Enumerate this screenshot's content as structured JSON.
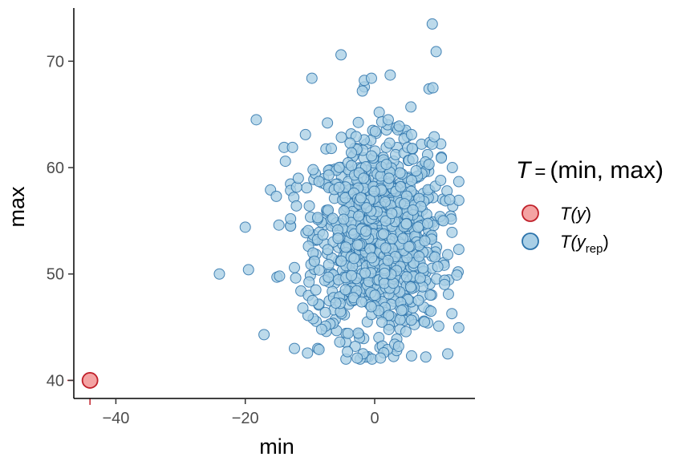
{
  "chart_data": {
    "type": "scatter",
    "title": "",
    "xlabel": "min",
    "ylabel": "max",
    "xlim": [
      -46.5,
      15.5
    ],
    "ylim": [
      38.3,
      75
    ],
    "x_ticks": [
      -40,
      -20,
      0
    ],
    "x_tick_labels": [
      "−40",
      "−20",
      "0"
    ],
    "y_ticks": [
      40,
      50,
      60,
      70
    ],
    "y_tick_labels": [
      "40",
      "50",
      "60",
      "70"
    ],
    "grid": false,
    "legend": {
      "placement": "right",
      "title_T": "T",
      "title_eq": "=",
      "title_rest": "(min, max)",
      "entries": [
        {
          "prefix": "T(",
          "main": "y",
          "sub": "",
          "suffix": ")",
          "fill": "#f4a3a3",
          "stroke": "#c0202a"
        },
        {
          "prefix": "T(",
          "main": "y",
          "sub": "rep",
          "suffix": ")",
          "fill": "#a9cfe6",
          "stroke": "#2a72aa"
        }
      ]
    },
    "series": [
      {
        "name": "T(y)",
        "fill": "#f4a3a3",
        "stroke": "#c0202a",
        "rug": true,
        "points": [
          [
            -44,
            40
          ]
        ]
      },
      {
        "name": "T(y_rep)",
        "fill": "#a9cfe6",
        "stroke": "#2a72aa",
        "opacity": 0.78,
        "generated": {
          "count": 1000,
          "x_center": 0.5,
          "x_sd": 4.8,
          "x_min": -13,
          "x_max": 13,
          "y_center": 53.5,
          "y_sd": 4.3,
          "y_min": 42,
          "y_max": 73
        },
        "points": [
          [
            -24,
            50
          ],
          [
            -19.5,
            50.4
          ],
          [
            -20,
            54.4
          ],
          [
            -18.3,
            64.5
          ],
          [
            -17.1,
            44.3
          ],
          [
            -16.1,
            57.9
          ],
          [
            -15.2,
            57.3
          ],
          [
            -15.1,
            49.7
          ],
          [
            -14.7,
            49.8
          ],
          [
            -14.8,
            54.6
          ],
          [
            -14,
            61.9
          ],
          [
            -13.8,
            60.6
          ],
          [
            -12.7,
            61.9
          ],
          [
            -12.4,
            43
          ],
          [
            -12.5,
            57.2
          ],
          [
            -12.1,
            56.4
          ],
          [
            -12.4,
            50.6
          ],
          [
            -11.8,
            59
          ],
          [
            -10.7,
            63.1
          ],
          [
            -10.1,
            56.4
          ],
          [
            -9.7,
            68.4
          ],
          [
            -8.8,
            43
          ],
          [
            -9.6,
            47.5
          ],
          [
            -8.6,
            42.9
          ],
          [
            -7.3,
            64.2
          ],
          [
            -6.7,
            61.8
          ],
          [
            -7.1,
            59.3
          ],
          [
            -5.2,
            70.6
          ],
          [
            -3.8,
            62.3
          ],
          [
            -3.6,
            61.4
          ],
          [
            -3.1,
            59.3
          ],
          [
            -2.4,
            59.5
          ],
          [
            -1.7,
            59
          ],
          [
            -1.6,
            68.2
          ],
          [
            -1.9,
            67.2
          ],
          [
            -0.3,
            63.5
          ],
          [
            0.1,
            63.4
          ],
          [
            -0.5,
            68.4
          ],
          [
            0.7,
            65.2
          ],
          [
            1.1,
            64.3
          ],
          [
            2.2,
            59
          ],
          [
            1.8,
            60.3
          ],
          [
            2.3,
            62.3
          ],
          [
            2.1,
            64.5
          ],
          [
            2.4,
            68.7
          ],
          [
            3.8,
            63.9
          ],
          [
            5.1,
            61.9
          ],
          [
            5.8,
            61.8
          ],
          [
            5.7,
            63.1
          ],
          [
            5.9,
            60.8
          ],
          [
            4,
            58.2
          ],
          [
            4.6,
            56.6
          ],
          [
            5.7,
            58.8
          ],
          [
            6.4,
            59.7
          ],
          [
            5.6,
            65.7
          ],
          [
            8.4,
            60.3
          ],
          [
            8.9,
            62.2
          ],
          [
            9.2,
            62.9
          ],
          [
            10.3,
            60.9
          ],
          [
            12,
            60
          ],
          [
            8.4,
            67.4
          ],
          [
            9,
            67.5
          ],
          [
            8.9,
            73.5
          ],
          [
            9.5,
            70.9
          ],
          [
            10.2,
            58.8
          ],
          [
            10.1,
            55.4
          ],
          [
            10.6,
            55
          ],
          [
            11.6,
            57
          ],
          [
            12.9,
            50.2
          ],
          [
            12.7,
            49.9
          ],
          [
            11.4,
            48.1
          ],
          [
            8.7,
            46.5
          ],
          [
            9.9,
            45.1
          ],
          [
            8.2,
            45.4
          ],
          [
            7.7,
            45.5
          ],
          [
            7.9,
            42.2
          ],
          [
            5.7,
            42.3
          ],
          [
            3.4,
            42.8
          ],
          [
            2,
            42.9
          ],
          [
            3.1,
            43.4
          ],
          [
            3.7,
            43.2
          ],
          [
            1.4,
            42.6
          ],
          [
            0.9,
            42.1
          ],
          [
            -1.8,
            42.5
          ],
          [
            -2.7,
            42.1
          ],
          [
            -3,
            43.2
          ],
          [
            -4.2,
            42.7
          ],
          [
            -5.4,
            43.6
          ],
          [
            -7.6,
            45.1
          ],
          [
            -8.2,
            44.8
          ],
          [
            -9.5,
            45.8
          ],
          [
            -10.3,
            46.1
          ],
          [
            -11.1,
            46.8
          ],
          [
            -9.1,
            48.5
          ],
          [
            -9.3,
            51.2
          ]
        ]
      }
    ]
  }
}
